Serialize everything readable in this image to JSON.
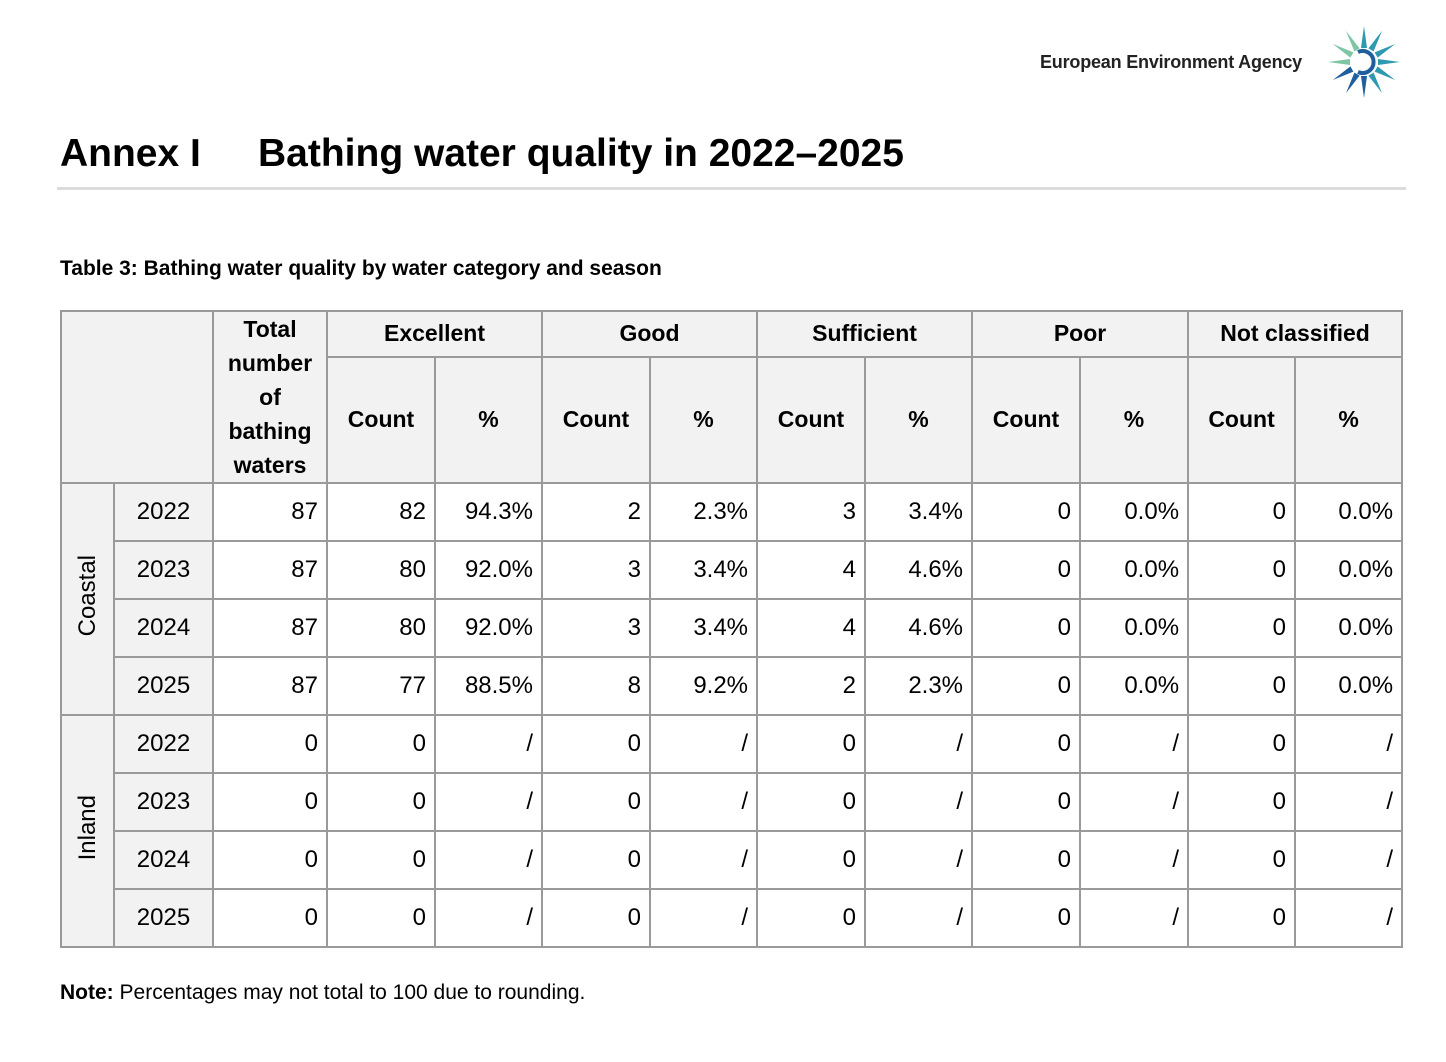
{
  "header": {
    "agency": "European Environment Agency"
  },
  "title": {
    "label": "Annex I",
    "text": "Bathing water quality in 2022–2025"
  },
  "table": {
    "caption": "Table 3: Bathing water quality by water category and season",
    "total_header": "Total number of bathing waters",
    "groups": [
      {
        "name": "Excellent",
        "columns": [
          "Count",
          "%"
        ]
      },
      {
        "name": "Good",
        "columns": [
          "Count",
          "%"
        ]
      },
      {
        "name": "Sufficient",
        "columns": [
          "Count",
          "%"
        ]
      },
      {
        "name": "Poor",
        "columns": [
          "Count",
          "%"
        ]
      },
      {
        "name": "Not classified",
        "columns": [
          "Count",
          "%"
        ]
      }
    ],
    "sections": [
      {
        "name": "Coastal",
        "rows": [
          {
            "year": "2022",
            "cells": [
              "87",
              "82",
              "94.3%",
              "2",
              "2.3%",
              "3",
              "3.4%",
              "0",
              "0.0%",
              "0",
              "0.0%"
            ]
          },
          {
            "year": "2023",
            "cells": [
              "87",
              "80",
              "92.0%",
              "3",
              "3.4%",
              "4",
              "4.6%",
              "0",
              "0.0%",
              "0",
              "0.0%"
            ]
          },
          {
            "year": "2024",
            "cells": [
              "87",
              "80",
              "92.0%",
              "3",
              "3.4%",
              "4",
              "4.6%",
              "0",
              "0.0%",
              "0",
              "0.0%"
            ]
          },
          {
            "year": "2025",
            "cells": [
              "87",
              "77",
              "88.5%",
              "8",
              "9.2%",
              "2",
              "2.3%",
              "0",
              "0.0%",
              "0",
              "0.0%"
            ]
          }
        ]
      },
      {
        "name": "Inland",
        "rows": [
          {
            "year": "2022",
            "cells": [
              "0",
              "0",
              "/",
              "0",
              "/",
              "0",
              "/",
              "0",
              "/",
              "0",
              "/"
            ]
          },
          {
            "year": "2023",
            "cells": [
              "0",
              "0",
              "/",
              "0",
              "/",
              "0",
              "/",
              "0",
              "/",
              "0",
              "/"
            ]
          },
          {
            "year": "2024",
            "cells": [
              "0",
              "0",
              "/",
              "0",
              "/",
              "0",
              "/",
              "0",
              "/",
              "0",
              "/"
            ]
          },
          {
            "year": "2025",
            "cells": [
              "0",
              "0",
              "/",
              "0",
              "/",
              "0",
              "/",
              "0",
              "/",
              "0",
              "/"
            ]
          }
        ]
      }
    ]
  },
  "note": {
    "label": "Note:",
    "text": "Percentages may not total to 100 due to rounding."
  }
}
